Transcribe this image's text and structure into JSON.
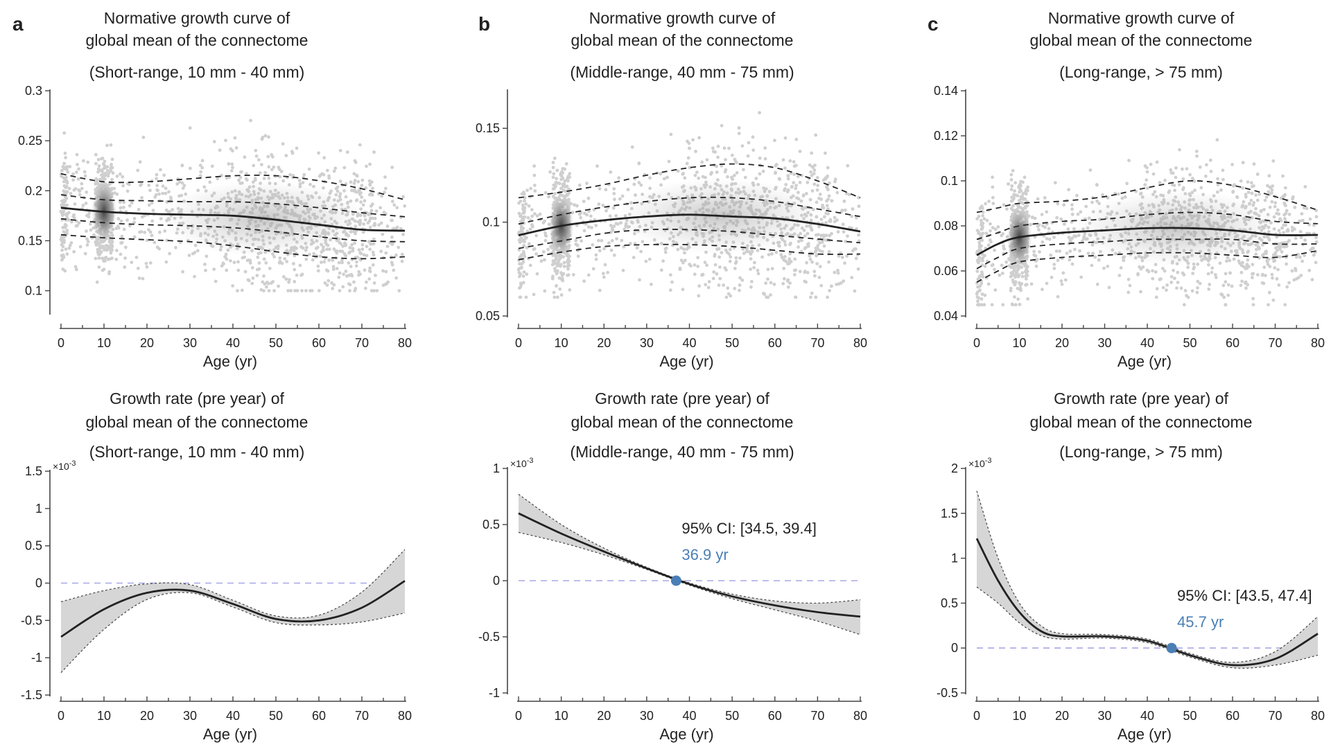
{
  "panel_labels": [
    "a",
    "b",
    "c"
  ],
  "colors": {
    "curve": "#222222",
    "points": "#cfcfcf",
    "band": "#d6d6d6",
    "zero_line": "#a7a7e6",
    "marker": "#4a7fb5"
  },
  "chart_data": [
    {
      "id": "a-top",
      "panel": "a",
      "type": "line",
      "title_lines": [
        "Normative growth curve of",
        "global mean of the connectome",
        "(Short-range, 10 mm - 40 mm)"
      ],
      "xlabel": "Age (yr)",
      "ylabel": "",
      "xlim": [
        0,
        80
      ],
      "ylim": [
        0.0775,
        0.3
      ],
      "xticks": [
        0,
        10,
        20,
        30,
        40,
        50,
        60,
        70,
        80
      ],
      "xtick_labels": [
        "0",
        "10",
        "20",
        "30",
        "40",
        "50",
        "60",
        "70",
        "80"
      ],
      "yticks": [
        0.1,
        0.15,
        0.2,
        0.25,
        0.3
      ],
      "ytick_labels": [
        "0.1",
        "0.15",
        "0.2",
        "0.25",
        "0.3"
      ],
      "scatter": {
        "density": "high",
        "cluster_age": 10,
        "y_range": [
          0.1,
          0.29
        ]
      },
      "series": [
        {
          "line": "solid",
          "x": [
            0,
            10,
            20,
            30,
            40,
            50,
            60,
            70,
            80
          ],
          "y": [
            0.183,
            0.179,
            0.177,
            0.176,
            0.175,
            0.171,
            0.166,
            0.161,
            0.16
          ]
        },
        {
          "line": "dashed",
          "x": [
            0,
            10,
            20,
            30,
            40,
            50,
            60,
            70,
            80
          ],
          "y": [
            0.217,
            0.209,
            0.209,
            0.212,
            0.215,
            0.215,
            0.21,
            0.202,
            0.191
          ]
        },
        {
          "line": "dashed",
          "x": [
            0,
            10,
            20,
            30,
            40,
            50,
            60,
            70,
            80
          ],
          "y": [
            0.196,
            0.191,
            0.19,
            0.189,
            0.189,
            0.187,
            0.183,
            0.178,
            0.174
          ]
        },
        {
          "line": "dashed",
          "x": [
            0,
            10,
            20,
            30,
            40,
            50,
            60,
            70,
            80
          ],
          "y": [
            0.172,
            0.168,
            0.166,
            0.165,
            0.163,
            0.159,
            0.154,
            0.15,
            0.149
          ]
        },
        {
          "line": "dashed",
          "x": [
            0,
            10,
            20,
            30,
            40,
            50,
            60,
            70,
            80
          ],
          "y": [
            0.156,
            0.153,
            0.151,
            0.149,
            0.145,
            0.139,
            0.134,
            0.132,
            0.134
          ]
        }
      ]
    },
    {
      "id": "b-top",
      "panel": "b",
      "type": "line",
      "title_lines": [
        "Normative growth curve of",
        "global mean of the connectome",
        "(Middle-range, 40 mm - 75 mm)"
      ],
      "xlabel": "Age (yr)",
      "ylabel": "",
      "xlim": [
        0,
        80
      ],
      "ylim": [
        0.05,
        0.17
      ],
      "xticks": [
        0,
        10,
        20,
        30,
        40,
        50,
        60,
        70,
        80
      ],
      "xtick_labels": [
        "0",
        "10",
        "20",
        "30",
        "40",
        "50",
        "60",
        "70",
        "80"
      ],
      "yticks": [
        0.05,
        0.1,
        0.15
      ],
      "ytick_labels": [
        "0.05",
        "0.1",
        "0.15"
      ],
      "scatter": {
        "density": "high",
        "cluster_age": 10,
        "y_range": [
          0.06,
          0.165
        ]
      },
      "series": [
        {
          "line": "solid",
          "x": [
            0,
            10,
            20,
            30,
            40,
            50,
            60,
            70,
            80
          ],
          "y": [
            0.093,
            0.098,
            0.101,
            0.103,
            0.104,
            0.103,
            0.102,
            0.099,
            0.095
          ]
        },
        {
          "line": "dashed",
          "x": [
            0,
            10,
            20,
            30,
            40,
            50,
            60,
            70,
            80
          ],
          "y": [
            0.113,
            0.116,
            0.12,
            0.125,
            0.129,
            0.131,
            0.129,
            0.122,
            0.113
          ]
        },
        {
          "line": "dashed",
          "x": [
            0,
            10,
            20,
            30,
            40,
            50,
            60,
            70,
            80
          ],
          "y": [
            0.099,
            0.104,
            0.108,
            0.111,
            0.113,
            0.113,
            0.111,
            0.107,
            0.103
          ]
        },
        {
          "line": "dashed",
          "x": [
            0,
            10,
            20,
            30,
            40,
            50,
            60,
            70,
            80
          ],
          "y": [
            0.086,
            0.09,
            0.094,
            0.096,
            0.096,
            0.095,
            0.093,
            0.091,
            0.089
          ]
        },
        {
          "line": "dashed",
          "x": [
            0,
            10,
            20,
            30,
            40,
            50,
            60,
            70,
            80
          ],
          "y": [
            0.08,
            0.084,
            0.087,
            0.088,
            0.088,
            0.087,
            0.085,
            0.083,
            0.083
          ]
        }
      ]
    },
    {
      "id": "c-top",
      "panel": "c",
      "type": "line",
      "title_lines": [
        "Normative growth curve of",
        "global mean of the connectome",
        "(Long-range, > 75 mm)"
      ],
      "xlabel": "Age (yr)",
      "ylabel": "",
      "xlim": [
        0,
        80
      ],
      "ylim": [
        0.04,
        0.14
      ],
      "xticks": [
        0,
        10,
        20,
        30,
        40,
        50,
        60,
        70,
        80
      ],
      "xtick_labels": [
        "0",
        "10",
        "20",
        "30",
        "40",
        "50",
        "60",
        "70",
        "80"
      ],
      "yticks": [
        0.04,
        0.06,
        0.08,
        0.1,
        0.12,
        0.14
      ],
      "ytick_labels": [
        "0.04",
        "0.06",
        "0.08",
        "0.1",
        "0.12",
        "0.14"
      ],
      "scatter": {
        "density": "high",
        "cluster_age": 10,
        "y_range": [
          0.045,
          0.135
        ]
      },
      "series": [
        {
          "line": "solid",
          "x": [
            0,
            5,
            10,
            20,
            30,
            40,
            50,
            60,
            70,
            80
          ],
          "y": [
            0.067,
            0.072,
            0.075,
            0.077,
            0.078,
            0.079,
            0.079,
            0.078,
            0.076,
            0.076
          ]
        },
        {
          "line": "dashed",
          "x": [
            0,
            5,
            10,
            20,
            30,
            40,
            50,
            60,
            70,
            80
          ],
          "y": [
            0.086,
            0.088,
            0.09,
            0.091,
            0.093,
            0.097,
            0.1,
            0.098,
            0.093,
            0.087
          ]
        },
        {
          "line": "dashed",
          "x": [
            0,
            5,
            10,
            20,
            30,
            40,
            50,
            60,
            70,
            80
          ],
          "y": [
            0.074,
            0.077,
            0.08,
            0.082,
            0.083,
            0.085,
            0.086,
            0.085,
            0.082,
            0.081
          ]
        },
        {
          "line": "dashed",
          "x": [
            0,
            5,
            10,
            20,
            30,
            40,
            50,
            60,
            70,
            80
          ],
          "y": [
            0.061,
            0.066,
            0.07,
            0.072,
            0.073,
            0.074,
            0.074,
            0.074,
            0.072,
            0.072
          ]
        },
        {
          "line": "dashed",
          "x": [
            0,
            5,
            10,
            20,
            30,
            40,
            50,
            60,
            70,
            80
          ],
          "y": [
            0.055,
            0.06,
            0.064,
            0.066,
            0.067,
            0.068,
            0.068,
            0.067,
            0.066,
            0.069
          ]
        }
      ]
    },
    {
      "id": "a-bottom",
      "panel": "a",
      "type": "line",
      "title_lines": [
        "Growth rate (pre year) of",
        "global mean of the connectome",
        "(Short-range, 10 mm - 40 mm)"
      ],
      "xlabel": "Age (yr)",
      "ylabel": "",
      "y_multiplier": "×10-3",
      "xlim": [
        0,
        80
      ],
      "ylim": [
        -1.5,
        1.5
      ],
      "xticks": [
        0,
        10,
        20,
        30,
        40,
        50,
        60,
        70,
        80
      ],
      "xtick_labels": [
        "0",
        "10",
        "20",
        "30",
        "40",
        "50",
        "60",
        "70",
        "80"
      ],
      "yticks": [
        -1.5,
        -1,
        -0.5,
        0,
        0.5,
        1,
        1.5
      ],
      "ytick_labels": [
        "-1.5",
        "-1",
        "-0.5",
        "0",
        "0.5",
        "1",
        "1.5"
      ],
      "zero_line": true,
      "curve": {
        "x": [
          0,
          10,
          20,
          30,
          40,
          50,
          60,
          70,
          80
        ],
        "y": [
          -0.72,
          -0.35,
          -0.13,
          -0.1,
          -0.28,
          -0.48,
          -0.5,
          -0.33,
          0.03
        ]
      },
      "ci_upper": [
        -0.25,
        -0.1,
        -0.01,
        -0.02,
        -0.23,
        -0.44,
        -0.43,
        -0.12,
        0.45
      ],
      "ci_lower": [
        -1.2,
        -0.62,
        -0.22,
        -0.13,
        -0.32,
        -0.53,
        -0.56,
        -0.52,
        -0.4
      ],
      "zero_crossing": null
    },
    {
      "id": "b-bottom",
      "panel": "b",
      "type": "line",
      "title_lines": [
        "Growth rate (pre year) of",
        "global mean of the connectome",
        "(Middle-range, 40 mm - 75 mm)"
      ],
      "xlabel": "Age (yr)",
      "ylabel": "",
      "y_multiplier": "×10-3",
      "xlim": [
        0,
        80
      ],
      "ylim": [
        -1,
        1
      ],
      "xticks": [
        0,
        10,
        20,
        30,
        40,
        50,
        60,
        70,
        80
      ],
      "xtick_labels": [
        "0",
        "10",
        "20",
        "30",
        "40",
        "50",
        "60",
        "70",
        "80"
      ],
      "yticks": [
        -1,
        -0.5,
        0,
        0.5,
        1
      ],
      "ytick_labels": [
        "-1",
        "-0.5",
        "0",
        "0.5",
        "1"
      ],
      "zero_line": true,
      "curve": {
        "x": [
          0,
          10,
          20,
          30,
          40,
          50,
          60,
          70,
          80
        ],
        "y": [
          0.6,
          0.42,
          0.26,
          0.11,
          -0.03,
          -0.14,
          -0.22,
          -0.28,
          -0.32
        ]
      },
      "ci_upper": [
        0.77,
        0.5,
        0.29,
        0.12,
        -0.02,
        -0.12,
        -0.18,
        -0.2,
        -0.17
      ],
      "ci_lower": [
        0.43,
        0.34,
        0.23,
        0.1,
        -0.04,
        -0.16,
        -0.26,
        -0.36,
        -0.48
      ],
      "zero_crossing": {
        "x": 36.9,
        "label": "36.9 yr",
        "ci_label": "95% CI: [34.5, 39.4]"
      }
    },
    {
      "id": "c-bottom",
      "panel": "c",
      "type": "line",
      "title_lines": [
        "Growth rate (pre year) of",
        "global mean of the connectome",
        "(Long-range, > 75 mm)"
      ],
      "xlabel": "Age (yr)",
      "ylabel": "",
      "y_multiplier": "×10-3",
      "xlim": [
        0,
        80
      ],
      "ylim": [
        -0.5,
        2
      ],
      "xticks": [
        0,
        10,
        20,
        30,
        40,
        50,
        60,
        70,
        80
      ],
      "xtick_labels": [
        "0",
        "10",
        "20",
        "30",
        "40",
        "50",
        "60",
        "70",
        "80"
      ],
      "yticks": [
        -0.5,
        0,
        0.5,
        1,
        1.5,
        2
      ],
      "ytick_labels": [
        "-0.5",
        "0",
        "0.5",
        "1",
        "1.5",
        "2"
      ],
      "zero_line": true,
      "curve": {
        "x": [
          0,
          5,
          10,
          15,
          20,
          30,
          40,
          50,
          60,
          70,
          80
        ],
        "y": [
          1.22,
          0.75,
          0.4,
          0.19,
          0.13,
          0.13,
          0.08,
          -0.08,
          -0.19,
          -0.12,
          0.16
        ]
      },
      "ci_upper": [
        1.75,
        1.0,
        0.5,
        0.25,
        0.16,
        0.15,
        0.1,
        -0.06,
        -0.16,
        -0.04,
        0.35
      ],
      "ci_lower": [
        0.68,
        0.5,
        0.28,
        0.14,
        0.1,
        0.11,
        0.06,
        -0.1,
        -0.22,
        -0.19,
        -0.08
      ],
      "zero_crossing": {
        "x": 45.7,
        "label": "45.7 yr",
        "ci_label": "95% CI: [43.5, 47.4]"
      }
    }
  ]
}
